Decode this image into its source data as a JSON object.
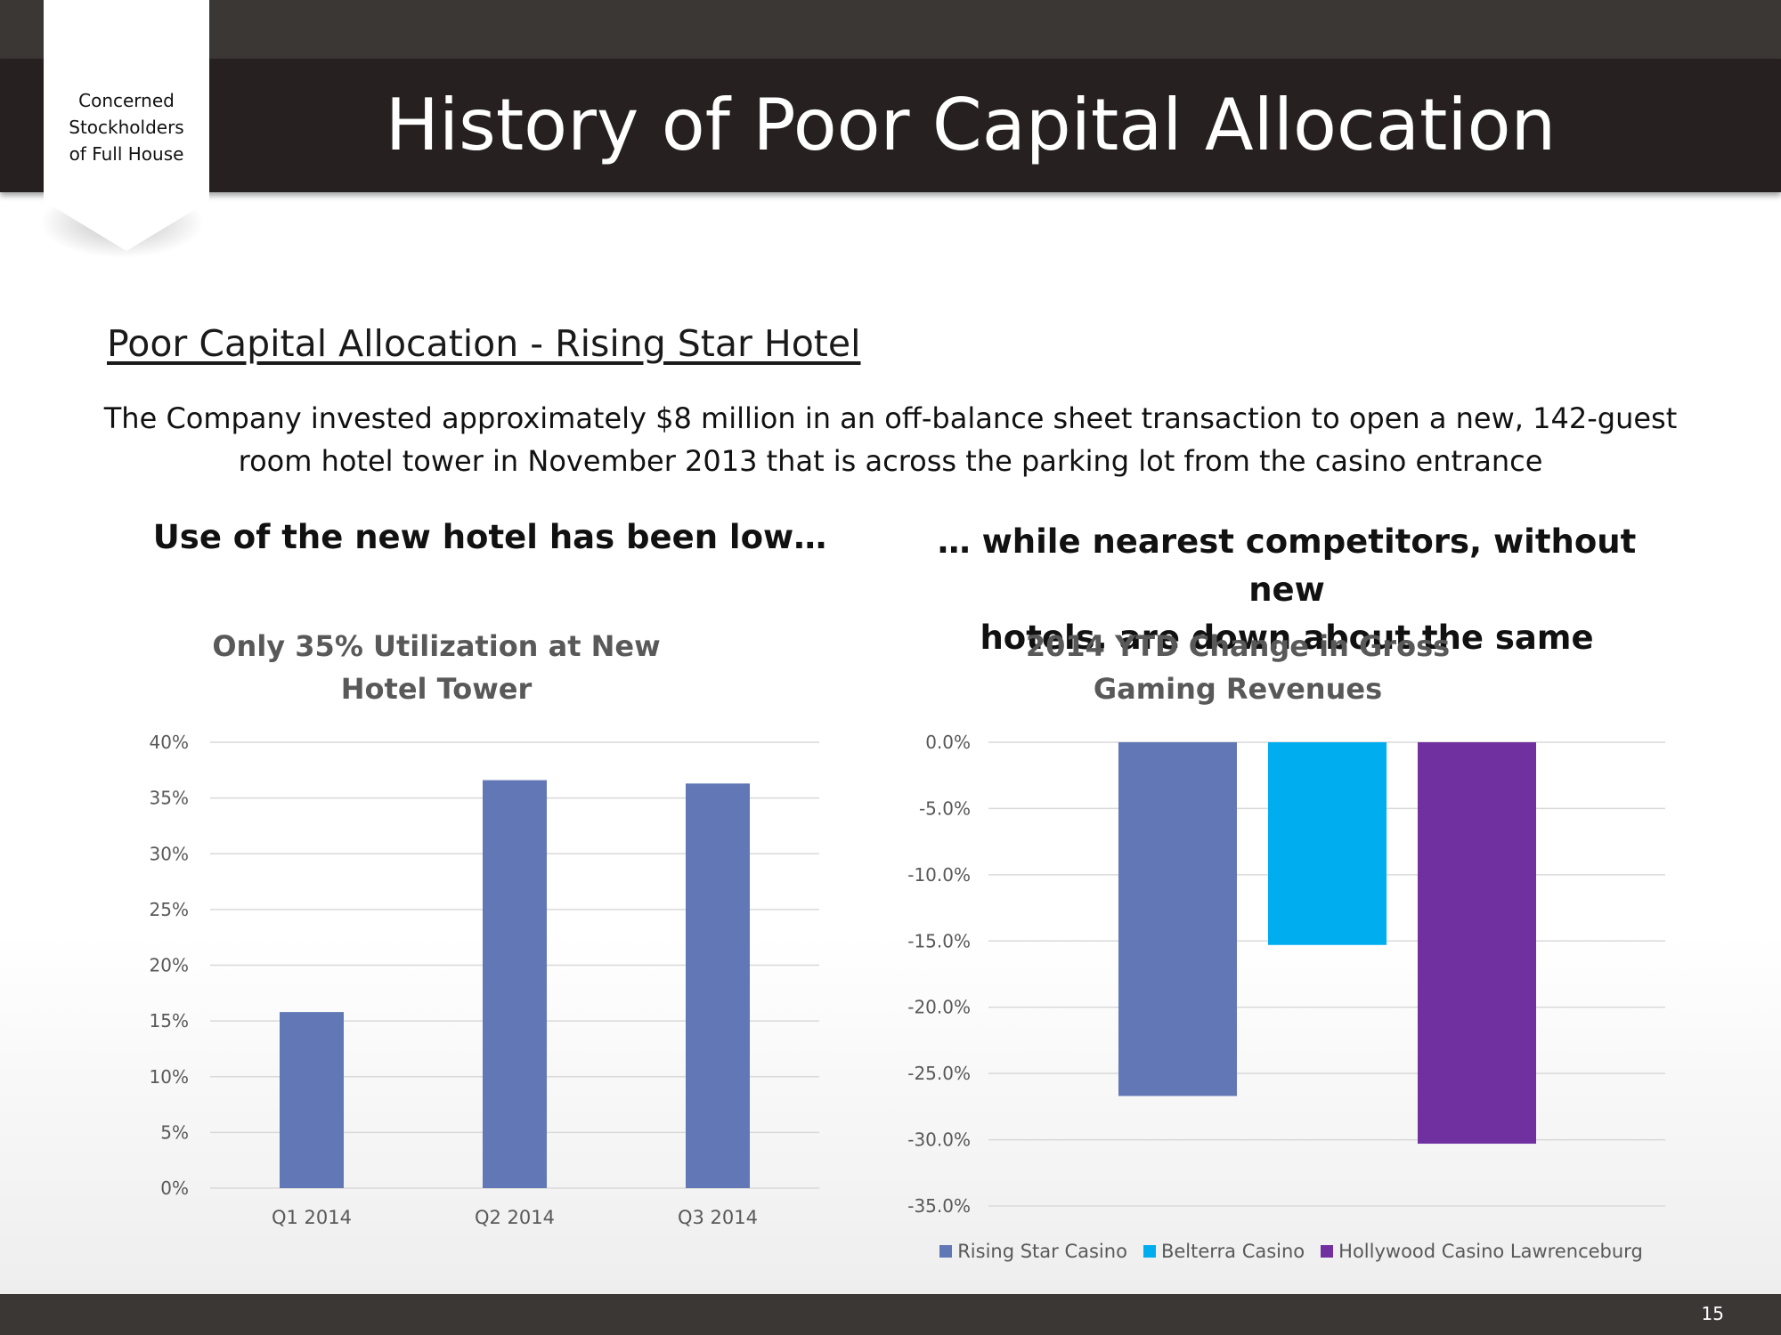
{
  "header": {
    "title": "History of Poor Capital Allocation",
    "tag_lines": [
      "Concerned",
      "Stockholders",
      "of Full House"
    ]
  },
  "section_title": "Poor Capital Allocation  - Rising Star Hotel",
  "description": {
    "line1": "The Company invested approximately $8 million in an off-balance sheet transaction to open a new, 142-guest",
    "line2": "room hotel tower in November 2013 that is across the parking lot from the casino entrance"
  },
  "left_heading": "Use of the new hotel has been low…",
  "right_heading": {
    "line1": "… while nearest competitors, without new",
    "line2": "hotels, are down about the same"
  },
  "chart_data": [
    {
      "type": "bar",
      "title_lines": [
        "Only 35%  Utilization at New",
        "Hotel Tower"
      ],
      "categories": [
        "Q1 2014",
        "Q2 2014",
        "Q3 2014"
      ],
      "values": [
        0.158,
        0.366,
        0.363
      ],
      "ylim": [
        0,
        0.4
      ],
      "yticks": [
        0,
        0.05,
        0.1,
        0.15,
        0.2,
        0.25,
        0.3,
        0.35,
        0.4
      ],
      "ytick_labels": [
        "0%",
        "5%",
        "10%",
        "15%",
        "20%",
        "25%",
        "30%",
        "35%",
        "40%"
      ],
      "grid": true,
      "color": "#6277b5"
    },
    {
      "type": "bar",
      "title_lines": [
        "2014 YTD Change in Gross",
        "Gaming Revenues"
      ],
      "series": [
        {
          "name": "Rising Star Casino",
          "value": -0.267,
          "color": "#6277b5"
        },
        {
          "name": "Belterra Casino",
          "value": -0.153,
          "color": "#00aeef"
        },
        {
          "name": "Hollywood Casino Lawrenceburg",
          "value": -0.303,
          "color": "#7030a0"
        }
      ],
      "ylim": [
        -0.35,
        0
      ],
      "yticks": [
        0,
        -0.05,
        -0.1,
        -0.15,
        -0.2,
        -0.25,
        -0.3,
        -0.35
      ],
      "ytick_labels": [
        "0.0%",
        "-5.0%",
        "-10.0%",
        "-15.0%",
        "-20.0%",
        "-25.0%",
        "-30.0%",
        "-35.0%"
      ],
      "grid": true,
      "legend": "bottom"
    }
  ],
  "page_number": "15"
}
